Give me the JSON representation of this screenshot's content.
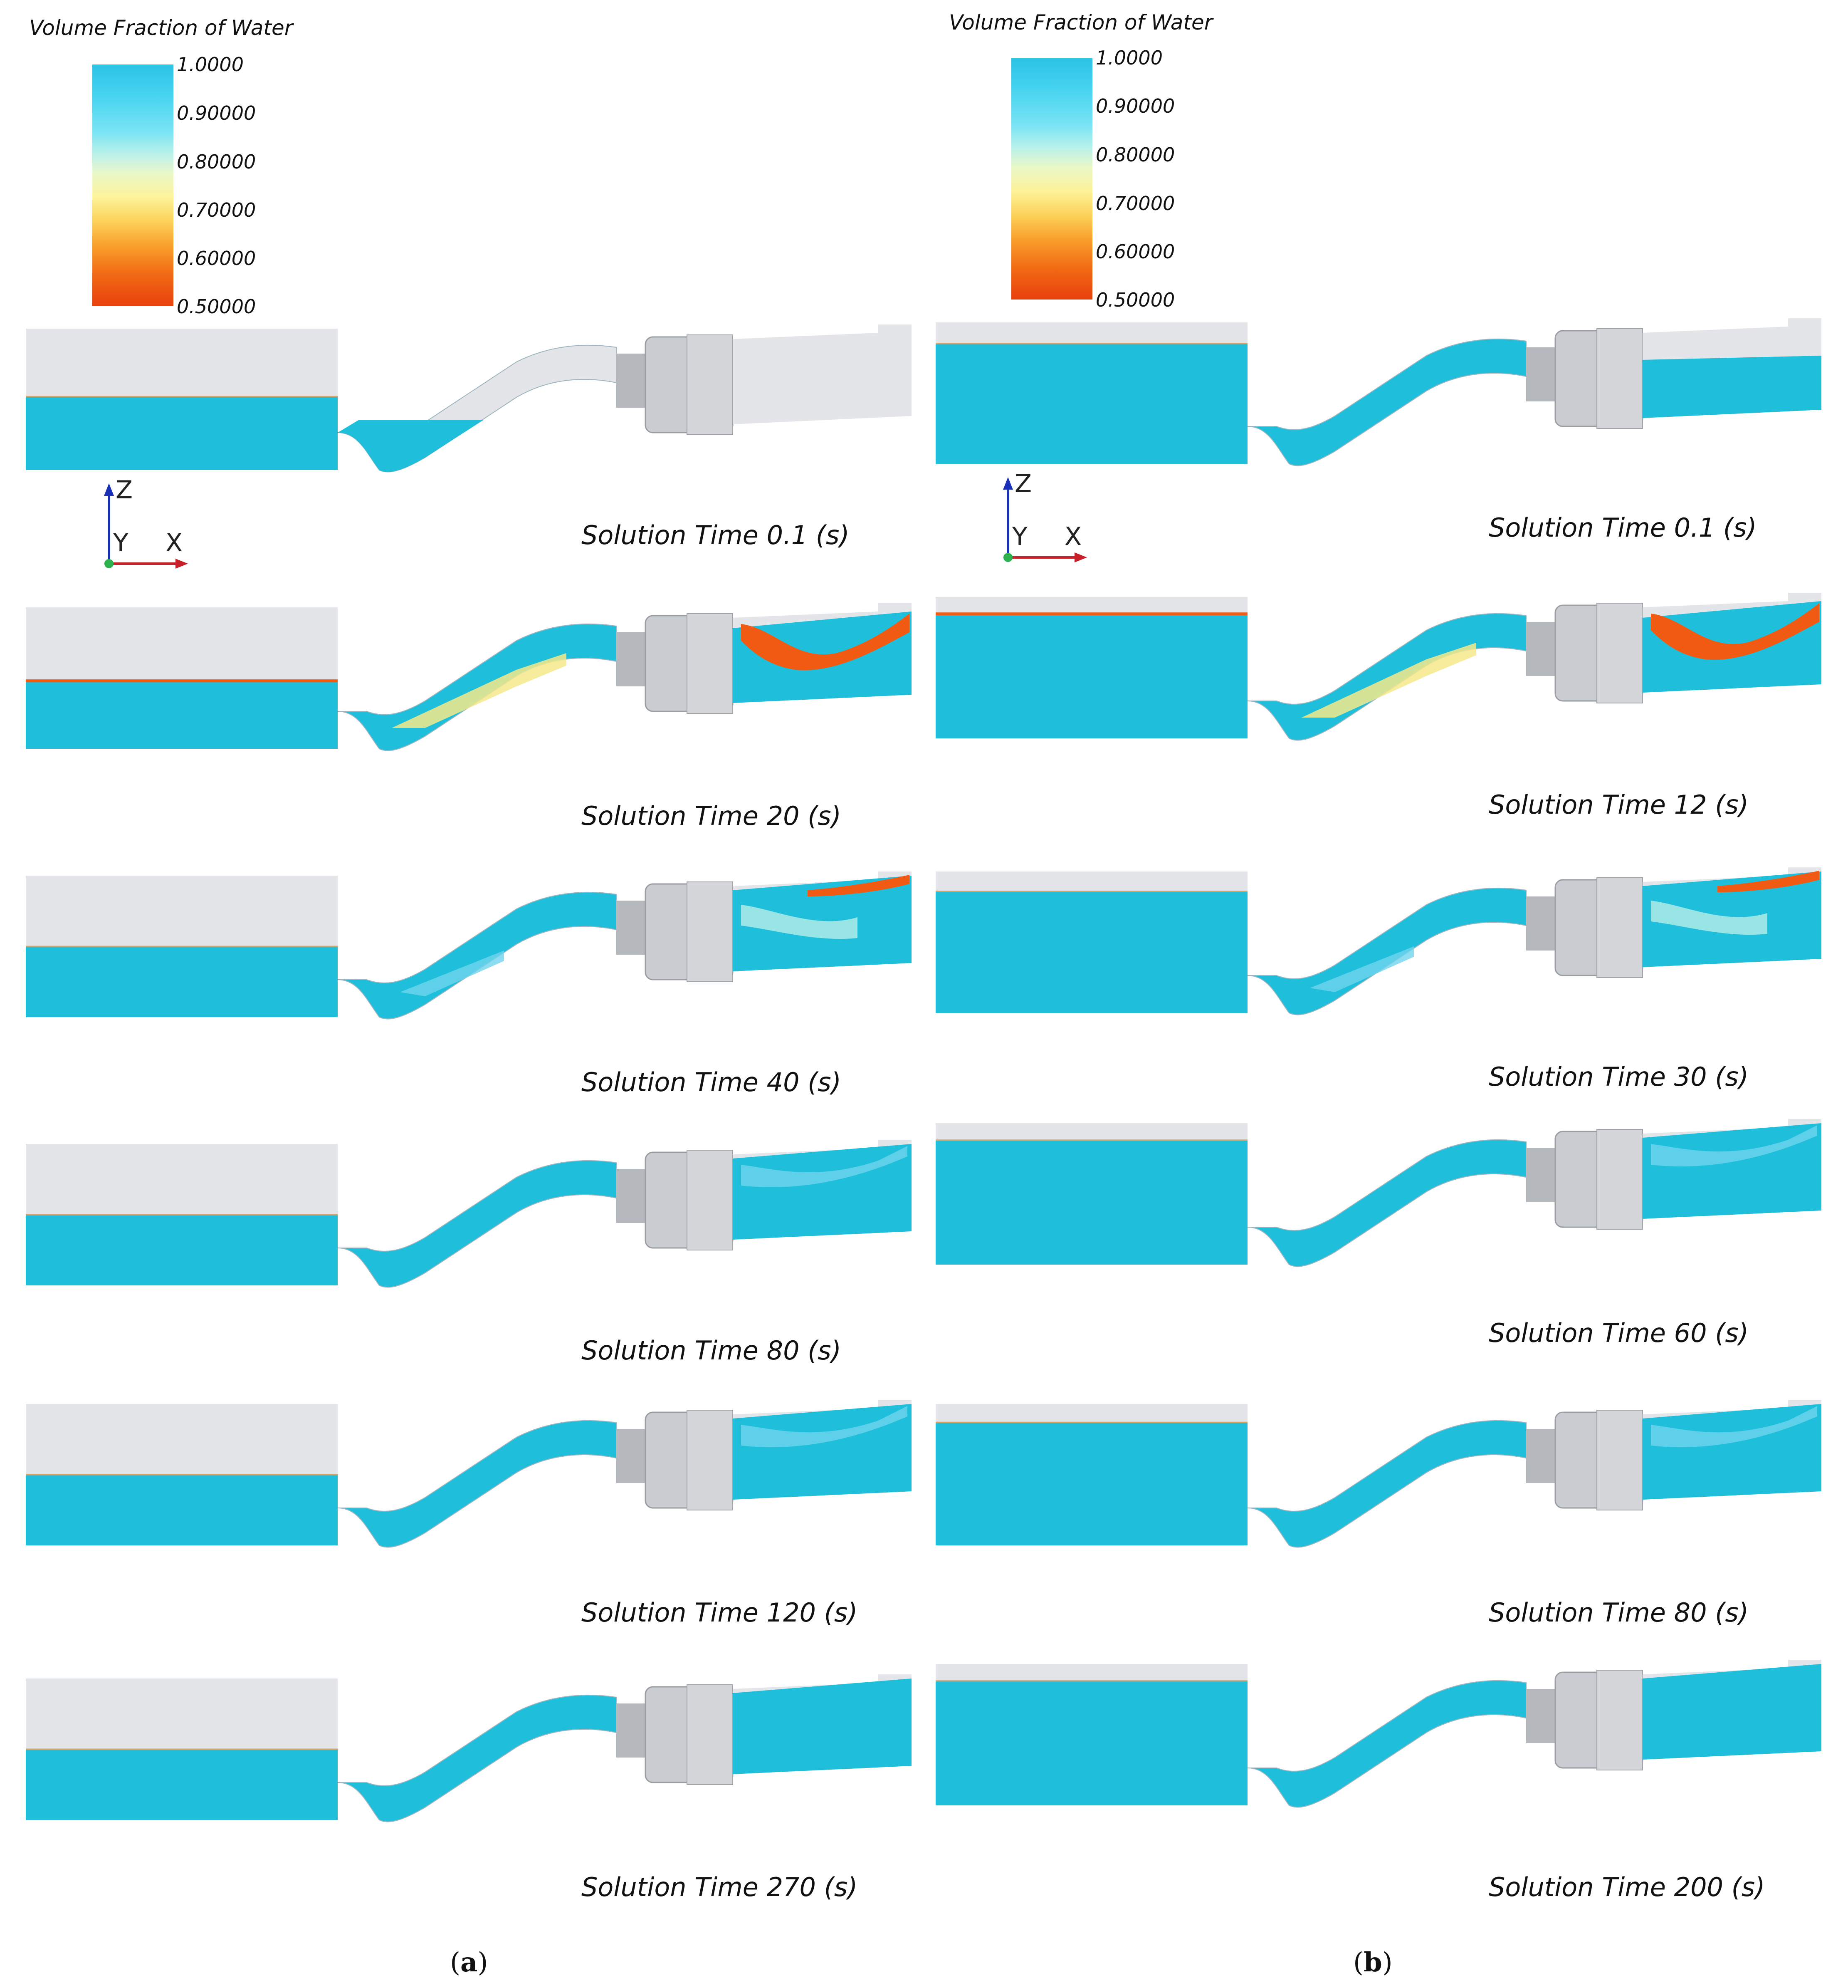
{
  "legend_a": {
    "title": "Volume Fraction of Water",
    "ticks": [
      "1.0000",
      "0.90000",
      "0.80000",
      "0.70000",
      "0.60000",
      "0.50000"
    ]
  },
  "legend_b": {
    "title": "Volume Fraction of Water",
    "ticks": [
      "1.0000",
      "0.90000",
      "0.80000",
      "0.70000",
      "0.60000",
      "0.50000"
    ]
  },
  "axes": {
    "z": "Z",
    "y": "Y",
    "x": "X"
  },
  "column_a": {
    "label_letter": "a",
    "frames": [
      {
        "caption": "Solution Time 0.1 (s)"
      },
      {
        "caption": "Solution Time 20 (s)"
      },
      {
        "caption": "Solution Time 40 (s)"
      },
      {
        "caption": "Solution Time 80 (s)"
      },
      {
        "caption": "Solution Time 120 (s)"
      },
      {
        "caption": "Solution Time 270 (s)"
      }
    ]
  },
  "column_b": {
    "label_letter": "b",
    "frames": [
      {
        "caption": "Solution Time 0.1 (s)"
      },
      {
        "caption": "Solution Time 12 (s)"
      },
      {
        "caption": "Solution Time 30 (s)"
      },
      {
        "caption": "Solution Time 60 (s)"
      },
      {
        "caption": "Solution Time 80 (s)"
      },
      {
        "caption": "Solution Time 200 (s)"
      }
    ]
  },
  "colors": {
    "water": "#1fbfdb",
    "air": "#e3e5e8",
    "machine": "#c9ccd0",
    "low_fraction": "#f05a12"
  }
}
